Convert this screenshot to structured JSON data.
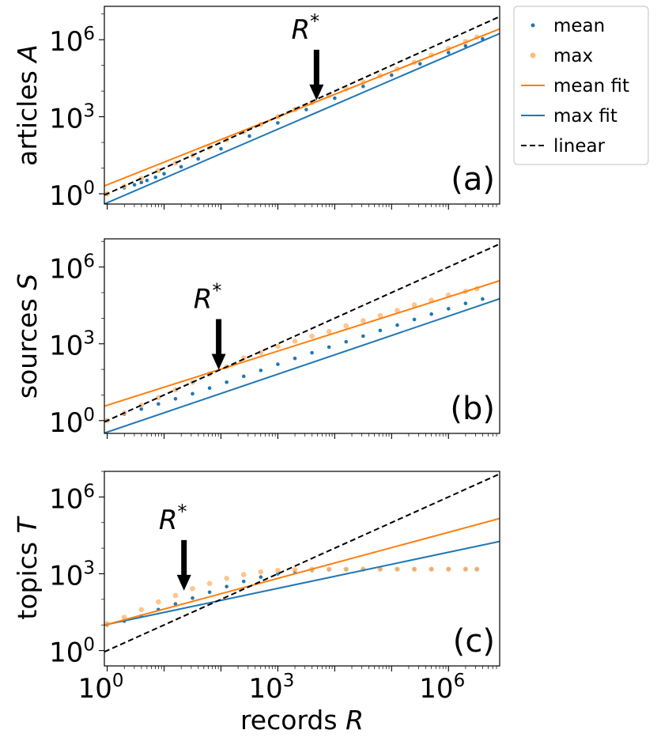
{
  "chart_data": {
    "type": "scatter",
    "shared_x": {
      "label_text": "records ",
      "label_var": "R",
      "scale": "log10",
      "xlim_log10": [
        -0.05,
        6.9
      ],
      "tick_log10": [
        0,
        3,
        6
      ],
      "tick_labels": [
        {
          "base": "10",
          "exp": "0"
        },
        {
          "base": "10",
          "exp": "3"
        },
        {
          "base": "10",
          "exp": "6"
        }
      ]
    },
    "legend": {
      "placement": "outside-top-right",
      "entries": [
        {
          "label": "mean",
          "kind": "dot-small",
          "color": "#1f77b4"
        },
        {
          "label": "max",
          "kind": "dot-large",
          "color": "#ffbb78"
        },
        {
          "label": "mean fit",
          "kind": "line",
          "color": "#ff7f0e"
        },
        {
          "label": "max fit",
          "kind": "line",
          "color": "#1f77b4"
        },
        {
          "label": "linear",
          "kind": "dashed",
          "color": "#000000"
        }
      ]
    },
    "panels": [
      {
        "id": "a",
        "ylabel_text": "articles ",
        "ylabel_var": "A",
        "panel_label": "(a)",
        "ylim_log10": [
          -0.4,
          7.3
        ],
        "tick_log10": [
          0,
          3,
          6
        ],
        "tick_labels": [
          {
            "base": "10",
            "exp": "0"
          },
          {
            "base": "10",
            "exp": "3"
          },
          {
            "base": "10",
            "exp": "6"
          }
        ],
        "annotation": {
          "text": "R",
          "sup": "*",
          "x_log10": 3.68,
          "y_log10": 3.7
        },
        "linear": {
          "slope": 1.0,
          "intercept": 0.0
        },
        "mean_fit": {
          "slope": 0.88,
          "intercept": 0.35
        },
        "max_fit": {
          "slope": 0.955,
          "intercept": -0.35
        },
        "mean_points": {
          "log10_x": [
            0.0,
            0.3,
            0.48,
            0.6,
            0.7,
            0.85,
            1.0,
            1.3,
            1.6,
            2.0,
            2.5,
            3.0,
            3.5,
            4.0,
            4.5,
            5.0,
            5.5,
            6.0,
            6.3,
            6.6
          ],
          "log10_y": [
            0.0,
            0.23,
            0.35,
            0.44,
            0.52,
            0.64,
            0.78,
            1.05,
            1.36,
            1.75,
            2.25,
            2.76,
            3.28,
            3.72,
            4.18,
            4.62,
            5.06,
            5.5,
            5.76,
            6.03
          ]
        },
        "max_points": {
          "log10_x": [
            0.0,
            0.3,
            0.6,
            0.9,
            1.2,
            1.5,
            1.8,
            2.1,
            2.4,
            2.7,
            3.0,
            3.3,
            3.6,
            3.9,
            4.2,
            4.5,
            4.8,
            5.1,
            5.4,
            5.7,
            6.0,
            6.3,
            6.5
          ],
          "log10_y": [
            0.0,
            0.3,
            0.6,
            0.9,
            1.2,
            1.5,
            1.8,
            2.1,
            2.4,
            2.7,
            3.0,
            3.28,
            3.55,
            3.82,
            4.08,
            4.35,
            4.6,
            4.86,
            5.12,
            5.4,
            5.66,
            5.93,
            6.1
          ]
        }
      },
      {
        "id": "b",
        "ylabel_text": "sources ",
        "ylabel_var": "S",
        "panel_label": "(b)",
        "ylim_log10": [
          -0.5,
          7.1
        ],
        "tick_log10": [
          0,
          3,
          6
        ],
        "tick_labels": [
          {
            "base": "10",
            "exp": "0"
          },
          {
            "base": "10",
            "exp": "3"
          },
          {
            "base": "10",
            "exp": "6"
          }
        ],
        "annotation": {
          "text": "R",
          "sup": "*",
          "x_log10": 1.96,
          "y_log10": 2.05
        },
        "linear": {
          "slope": 1.0,
          "intercept": 0.0
        },
        "mean_fit": {
          "slope": 0.705,
          "intercept": 0.6
        },
        "max_fit": {
          "slope": 0.755,
          "intercept": -0.45
        },
        "mean_points": {
          "log10_x": [
            0.0,
            0.3,
            0.6,
            0.9,
            1.2,
            1.5,
            1.8,
            2.1,
            2.4,
            2.7,
            3.0,
            3.3,
            3.6,
            3.9,
            4.2,
            4.5,
            4.8,
            5.1,
            5.4,
            5.7,
            6.0,
            6.3,
            6.6
          ],
          "log10_y": [
            0.0,
            0.25,
            0.45,
            0.65,
            0.85,
            1.05,
            1.27,
            1.5,
            1.73,
            1.96,
            2.2,
            2.43,
            2.65,
            2.87,
            3.08,
            3.3,
            3.52,
            3.73,
            3.95,
            4.16,
            4.37,
            4.58,
            4.75
          ]
        },
        "max_points": {
          "log10_x": [
            0.0,
            0.3,
            0.6,
            0.9,
            1.2,
            1.5,
            1.8,
            2.1,
            2.4,
            2.7,
            3.0,
            3.3,
            3.6,
            3.9,
            4.2,
            4.5,
            4.8,
            5.1,
            5.4,
            5.7,
            6.0,
            6.3,
            6.5
          ],
          "log10_y": [
            0.0,
            0.3,
            0.6,
            0.9,
            1.2,
            1.5,
            1.82,
            2.1,
            2.45,
            2.65,
            2.9,
            3.1,
            3.3,
            3.48,
            3.7,
            3.9,
            4.1,
            4.3,
            4.52,
            4.7,
            4.9,
            5.05,
            5.15
          ]
        }
      },
      {
        "id": "c",
        "ylabel_text": "topics ",
        "ylabel_var": "T",
        "panel_label": "(c)",
        "ylim_log10": [
          -0.6,
          7.0
        ],
        "tick_log10": [
          0,
          3,
          6
        ],
        "tick_labels": [
          {
            "base": "10",
            "exp": "0"
          },
          {
            "base": "10",
            "exp": "3"
          },
          {
            "base": "10",
            "exp": "6"
          }
        ],
        "annotation": {
          "text": "R",
          "sup": "*",
          "x_log10": 1.35,
          "y_log10": 2.4
        },
        "linear": {
          "slope": 1.0,
          "intercept": 0.0
        },
        "mean_fit": {
          "slope": 0.6,
          "intercept": 1.02
        },
        "max_fit": {
          "slope": 0.47,
          "intercept": 1.02
        },
        "mean_points": {
          "log10_x": [
            0.0,
            0.3,
            0.6,
            0.9,
            1.2,
            1.5,
            1.8,
            2.1,
            2.4,
            2.7,
            3.0,
            3.3,
            3.6,
            3.9,
            4.2,
            4.5,
            4.8,
            5.1,
            5.4,
            5.7,
            6.0,
            6.3,
            6.5
          ],
          "log10_y": [
            1.0,
            1.15,
            1.35,
            1.6,
            1.82,
            2.05,
            2.28,
            2.5,
            2.7,
            2.87,
            3.0,
            3.08,
            3.13,
            3.16,
            3.17,
            3.18,
            3.18,
            3.18,
            3.18,
            3.18,
            3.18,
            3.18,
            3.18
          ]
        },
        "max_points": {
          "log10_x": [
            0.0,
            0.3,
            0.6,
            0.9,
            1.2,
            1.5,
            1.8,
            2.1,
            2.4,
            2.7,
            3.0,
            3.3,
            3.6,
            3.9,
            4.2,
            4.5,
            4.8,
            5.1,
            5.4,
            5.7,
            6.0,
            6.3,
            6.5
          ],
          "log10_y": [
            1.05,
            1.3,
            1.6,
            1.9,
            2.15,
            2.42,
            2.62,
            2.82,
            2.97,
            3.07,
            3.13,
            3.16,
            3.18,
            3.18,
            3.18,
            3.18,
            3.18,
            3.18,
            3.18,
            3.18,
            3.18,
            3.18,
            3.18
          ]
        }
      }
    ]
  }
}
